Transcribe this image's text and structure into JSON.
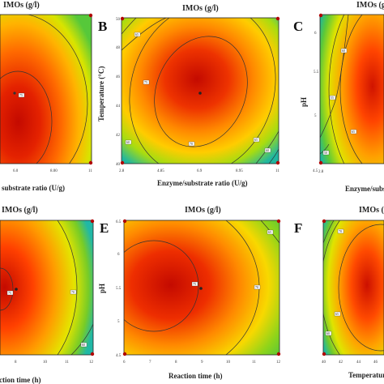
{
  "chart_data": [
    {
      "id": "A",
      "type": "heatmap",
      "letter": "",
      "title": "IMOs (g/l)",
      "xlabel": "substrate ratio (U/g)",
      "ylabel": "",
      "xticks": [
        "6.0",
        "8.00",
        "11"
      ],
      "yticks": [],
      "contour_labels": [
        "75"
      ],
      "colorscale": [
        "#c40a00",
        "#ff5a00",
        "#ffb000",
        "#e8e800",
        "#7ed11e",
        "#18b49c"
      ]
    },
    {
      "id": "B",
      "type": "heatmap",
      "letter": "B",
      "title": "IMOs (g/l)",
      "xlabel": "Enzyme/substrate ratio (U/g)",
      "ylabel": "Temperature (°C)",
      "xticks": [
        "2.8",
        "4.85",
        "6.9",
        "8.95",
        "11"
      ],
      "yticks": [
        "40",
        "42",
        "44",
        "46",
        "48",
        "50"
      ],
      "contour_labels": [
        "75",
        "70",
        "65",
        "60",
        "65",
        "60"
      ],
      "colorscale": [
        "#c40a00",
        "#ff5a00",
        "#ffb000",
        "#e8e800",
        "#7ed11e",
        "#18b49c"
      ]
    },
    {
      "id": "C",
      "type": "heatmap",
      "letter": "C",
      "title": "IMOs (g/l)",
      "xlabel": "Enzyme/substrate ratio (U/g)",
      "ylabel": "pH",
      "xticks": [
        "2.8"
      ],
      "yticks": [
        "4.5",
        "5",
        "5.5",
        "6"
      ],
      "contour_labels": [
        "65",
        "60",
        "55",
        "50"
      ],
      "colorscale": [
        "#c40a00",
        "#ff5a00",
        "#ffb000",
        "#e8e800",
        "#7ed11e",
        "#18b49c"
      ]
    },
    {
      "id": "D",
      "type": "heatmap",
      "letter": "",
      "title": "IMOs (g/l)",
      "xlabel": "Reaction time (h)",
      "ylabel": "",
      "xticks": [
        "8",
        "10",
        "11",
        "12"
      ],
      "yticks": [],
      "contour_labels": [
        "75",
        "70",
        "60"
      ],
      "colorscale": [
        "#c40a00",
        "#ff5a00",
        "#ffb000",
        "#e8e800",
        "#7ed11e",
        "#18b49c"
      ]
    },
    {
      "id": "E",
      "type": "heatmap",
      "letter": "E",
      "title": "IMOs (g/l)",
      "xlabel": "Reaction time (h)",
      "ylabel": "pH",
      "xticks": [
        "6",
        "7",
        "8",
        "9",
        "10",
        "11",
        "12"
      ],
      "yticks": [
        "4.5",
        "5",
        "5.5",
        "6",
        "6.5"
      ],
      "contour_labels": [
        "75",
        "70",
        "65"
      ],
      "colorscale": [
        "#c40a00",
        "#ff5a00",
        "#ffb000",
        "#e8e800",
        "#7ed11e",
        "#18b49c"
      ]
    },
    {
      "id": "F",
      "type": "heatmap",
      "letter": "F",
      "title": "IMOs (g/l)",
      "xlabel": "Temperature (°C)",
      "ylabel": "",
      "xticks": [
        "40",
        "42",
        "44",
        "46"
      ],
      "yticks": [],
      "contour_labels": [
        "70",
        "65",
        "60"
      ],
      "colorscale": [
        "#c40a00",
        "#ff5a00",
        "#ffb000",
        "#e8e800",
        "#7ed11e",
        "#18b49c"
      ]
    }
  ]
}
